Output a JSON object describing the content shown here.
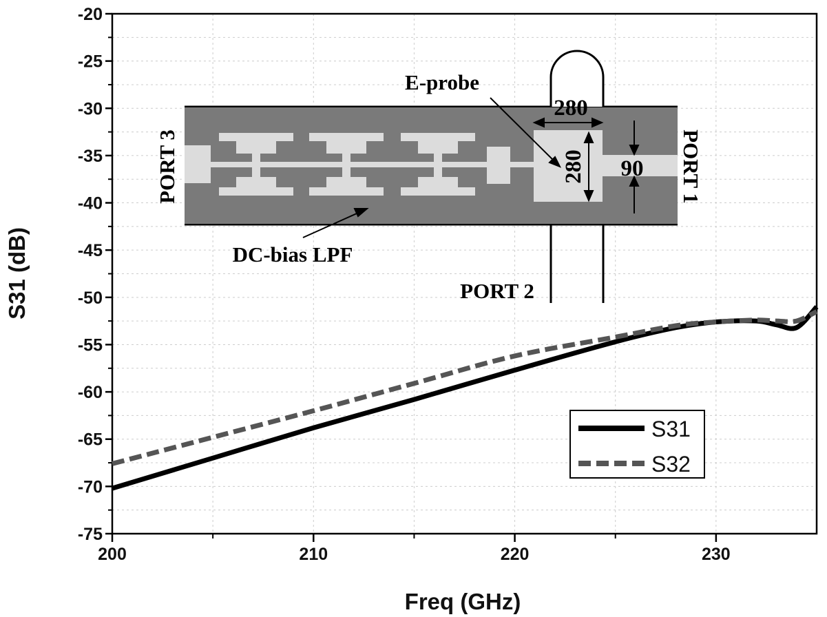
{
  "chart_data": {
    "type": "line",
    "title": "",
    "xlabel": "Freq (GHz)",
    "ylabel": "S31 (dB)",
    "xlim": [
      200,
      235
    ],
    "ylim": [
      -75,
      -20
    ],
    "xticks": [
      200,
      210,
      220,
      230
    ],
    "yticks": [
      -20,
      -25,
      -30,
      -35,
      -40,
      -45,
      -50,
      -55,
      -60,
      -65,
      -70,
      -75
    ],
    "grid": true,
    "legend_position": "bottom-right",
    "series": [
      {
        "name": "S31",
        "style": "solid",
        "color": "#000000",
        "x": [
          200,
          205,
          210,
          215,
          220,
          225,
          228,
          230,
          232,
          233,
          234,
          235
        ],
        "y": [
          -70.2,
          -67.0,
          -63.8,
          -60.8,
          -57.7,
          -54.7,
          -53.2,
          -52.6,
          -52.5,
          -52.9,
          -53.2,
          -51.0
        ]
      },
      {
        "name": "S32",
        "style": "dashed",
        "color": "#555555",
        "x": [
          200,
          205,
          210,
          215,
          220,
          225,
          228,
          230,
          232,
          233,
          234,
          235
        ],
        "y": [
          -67.6,
          -64.8,
          -62.0,
          -59.1,
          -56.2,
          -54.2,
          -53.0,
          -52.6,
          -52.4,
          -52.5,
          -52.5,
          -51.5
        ]
      }
    ]
  },
  "inset": {
    "port1": "PORT 1",
    "port2": "PORT 2",
    "port3": "PORT 3",
    "eprobe": "E-probe",
    "lpf": "DC-bias LPF",
    "dim_width": "280",
    "dim_height": "280",
    "dim_line": "90"
  }
}
